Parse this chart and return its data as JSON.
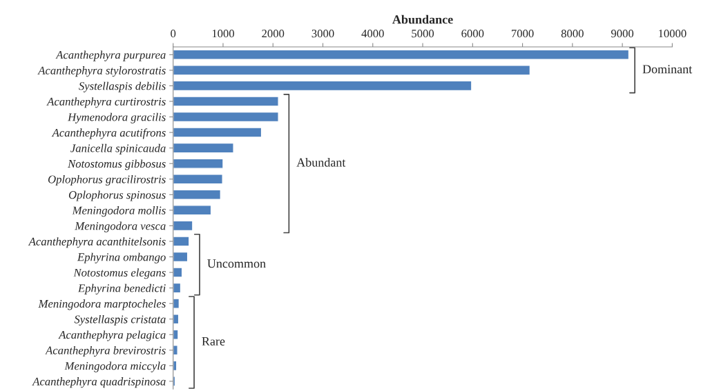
{
  "chart_data": {
    "type": "bar",
    "orientation": "horizontal",
    "xlabel": "Abundance",
    "categories": [
      "Acanthephyra purpurea",
      "Acanthephyra stylorostratis",
      "Systellaspis debilis",
      "Acanthephyra curtirostris",
      "Hymenodora gracilis",
      "Acanthephyra acutifrons",
      "Janicella spinicauda",
      "Notostomus gibbosus",
      "Oplophorus gracilirostris",
      "Oplophorus spinosus",
      "Meningodora mollis",
      "Meningodora vesca",
      "Acanthephyra acanthitelsonis",
      "Ephyrina ombango",
      "Notostomus elegans",
      "Ephyrina benedicti",
      "Meningodora marptocheles",
      "Systellaspis cristata",
      "Acanthephyra pelagica",
      "Acanthephyra brevirostris",
      "Meningodora miccyla",
      "Acanthephyra quadrispinosa"
    ],
    "values": [
      9130,
      7150,
      5980,
      2110,
      2110,
      1770,
      1210,
      1000,
      990,
      950,
      760,
      390,
      320,
      290,
      180,
      150,
      120,
      110,
      100,
      90,
      70,
      40
    ],
    "color": "#4f81bd",
    "xlim": [
      0,
      10000
    ],
    "xticks": [
      0,
      1000,
      2000,
      3000,
      4000,
      5000,
      6000,
      7000,
      8000,
      9000,
      10000
    ],
    "grid": false,
    "legend": false,
    "annotations": [
      "Dominant",
      "Abundant",
      "Uncommon",
      "Rare"
    ]
  }
}
